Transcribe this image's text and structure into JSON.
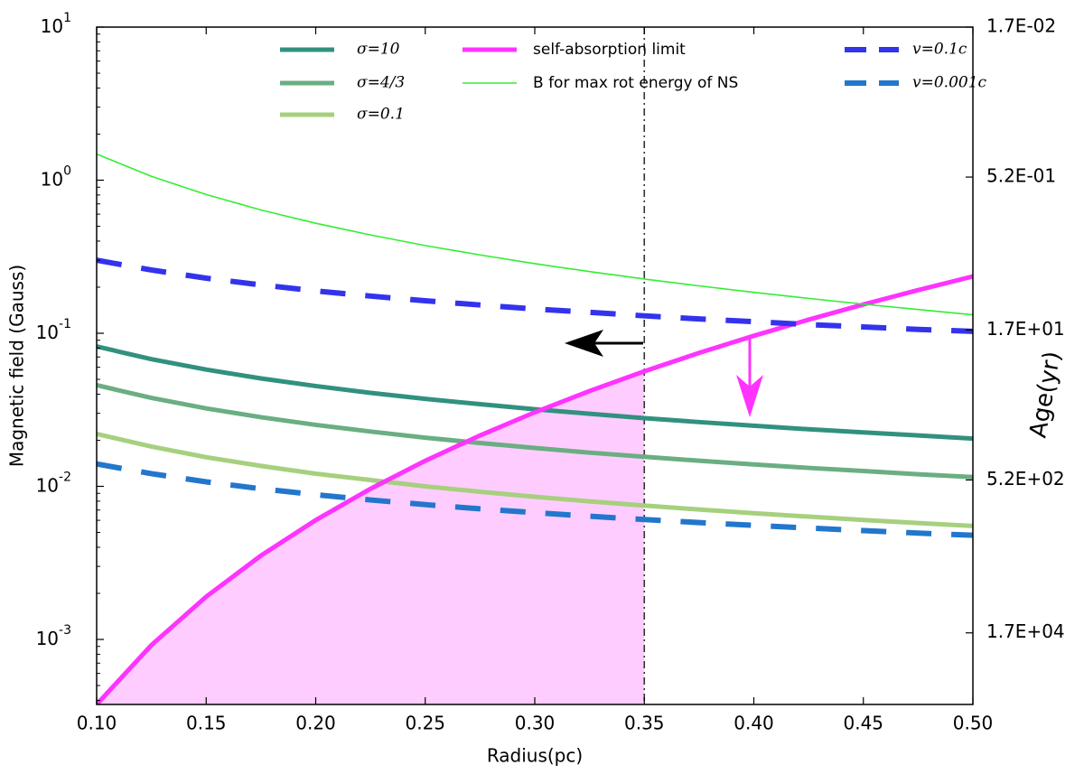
{
  "chart_data": {
    "type": "line",
    "xlabel": "Radius(pc)",
    "ylabel": "Magnetic field (Gauss)",
    "y2label": "Age(yr)",
    "yscale": "log",
    "y2scale": "log",
    "x": [
      0.1,
      0.125,
      0.15,
      0.175,
      0.2,
      0.225,
      0.25,
      0.275,
      0.3,
      0.325,
      0.35,
      0.375,
      0.4,
      0.425,
      0.45,
      0.475,
      0.5
    ],
    "series": [
      {
        "name": "σ=10",
        "color": "#31917e",
        "width": 5,
        "dashed": false,
        "values": [
          0.082,
          0.0677,
          0.0579,
          0.0507,
          0.0452,
          0.0408,
          0.0373,
          0.0344,
          0.0319,
          0.0298,
          0.0279,
          0.0263,
          0.0249,
          0.0236,
          0.0225,
          0.0215,
          0.0205
        ]
      },
      {
        "name": "σ=4/3",
        "color": "#6aae82",
        "width": 5,
        "dashed": false,
        "values": [
          0.0458,
          0.0378,
          0.0323,
          0.0283,
          0.0252,
          0.0228,
          0.0208,
          0.0192,
          0.0178,
          0.0166,
          0.0156,
          0.0147,
          0.0139,
          0.0132,
          0.0126,
          0.012,
          0.0115
        ]
      },
      {
        "name": "σ=0.1",
        "color": "#a6d07e",
        "width": 5,
        "dashed": false,
        "values": [
          0.022,
          0.0182,
          0.0155,
          0.0136,
          0.0121,
          0.011,
          0.01,
          0.00922,
          0.00855,
          0.00798,
          0.00749,
          0.00706,
          0.00668,
          0.00634,
          0.00603,
          0.00576,
          0.00551
        ]
      },
      {
        "name": "self-absorption limit",
        "color": "#ff33ff",
        "width": 5,
        "dashed": false,
        "values": [
          0.000376,
          0.000918,
          0.001903,
          0.003527,
          0.006016,
          0.009637,
          0.01469,
          0.0215,
          0.03046,
          0.04195,
          0.05643,
          0.07436,
          0.09626,
          0.1227,
          0.1542,
          0.1914,
          0.235
        ]
      },
      {
        "name": "B for max rot energy of NS",
        "color": "#33ee33",
        "width": 1.6,
        "dashed": false,
        "values": [
          1.48,
          1.059,
          0.806,
          0.639,
          0.523,
          0.439,
          0.374,
          0.325,
          0.285,
          0.253,
          0.226,
          0.204,
          0.185,
          0.169,
          0.155,
          0.143,
          0.132
        ]
      },
      {
        "name": "v=0.1c",
        "color": "#3333ee",
        "width": 6,
        "dashed": true,
        "values": [
          0.3,
          0.259,
          0.229,
          0.207,
          0.189,
          0.175,
          0.163,
          0.153,
          0.144,
          0.137,
          0.13,
          0.124,
          0.119,
          0.114,
          0.11,
          0.106,
          0.103
        ]
      },
      {
        "name": "v=0.001c",
        "color": "#2277cc",
        "width": 6,
        "dashed": true,
        "values": [
          0.014,
          0.0121,
          0.0107,
          0.00964,
          0.00882,
          0.00815,
          0.0076,
          0.00713,
          0.00673,
          0.00638,
          0.00607,
          0.0058,
          0.00556,
          0.00534,
          0.00514,
          0.00495,
          0.00479
        ]
      }
    ],
    "xlim": [
      0.1,
      0.5
    ],
    "xticks": [
      {
        "value": 0.1,
        "label": "0.10"
      },
      0.15,
      {
        "value": 0.2,
        "label": "0.20"
      },
      0.25,
      {
        "value": 0.3,
        "label": "0.30"
      },
      0.35,
      {
        "value": 0.4,
        "label": "0.40"
      },
      0.45,
      {
        "value": 0.5,
        "label": "0.50"
      }
    ],
    "ylim": [
      0.000376,
      10
    ],
    "yticks": [
      {
        "value": 0.001,
        "label": "10",
        "exp": "-3"
      },
      {
        "value": 0.01,
        "label": "10",
        "exp": "-2"
      },
      {
        "value": 0.1,
        "label": "10",
        "exp": "-1"
      },
      {
        "value": 1,
        "label": "10",
        "exp": "0"
      },
      {
        "value": 10,
        "label": "10",
        "exp": "1"
      }
    ],
    "y2lim": [
      0.017,
      87000
    ],
    "y2ticks": [
      {
        "value": 0.017,
        "label": "1.7E-02"
      },
      {
        "value": 0.52,
        "label": "5.2E-01"
      },
      {
        "value": 17,
        "label": "1.7E+01"
      },
      {
        "value": 520,
        "label": "5.2E+02"
      },
      {
        "value": 17000,
        "label": "1.7E+04"
      }
    ],
    "vline": 0.35,
    "shade_series": 3,
    "shade_color": "#ffccff"
  }
}
